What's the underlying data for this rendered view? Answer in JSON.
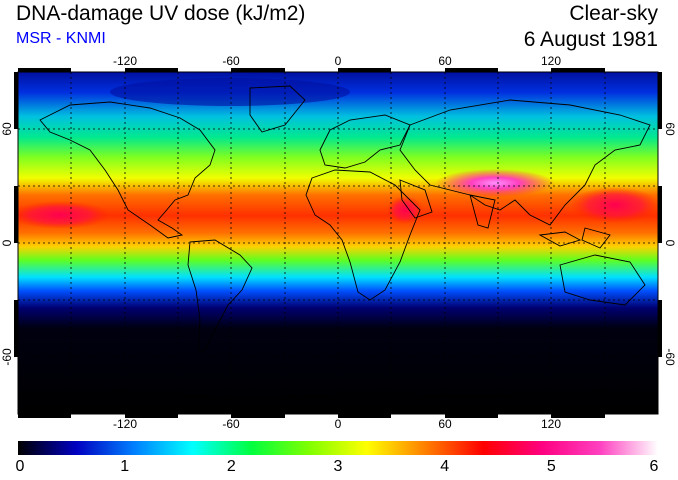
{
  "header": {
    "title": "DNA-damage UV dose (kJ/m2)",
    "subtitle": "MSR - KNMI",
    "mode": "Clear-sky",
    "date": "6 August 1981"
  },
  "map": {
    "lon_ticks": [
      "-120",
      "-60",
      "0",
      "60",
      "120"
    ],
    "lat_ticks_left": [
      "60",
      "0",
      "-60"
    ],
    "lat_ticks_right": [
      "60",
      "0",
      "-60"
    ],
    "grid": true,
    "projection": "equirectangular"
  },
  "colorbar": {
    "labels": [
      "0",
      "1",
      "2",
      "3",
      "4",
      "5",
      "6"
    ],
    "colors": [
      "#000000",
      "#0000c0",
      "#0080ff",
      "#00ffff",
      "#00ff40",
      "#80ff00",
      "#ffff00",
      "#ff8000",
      "#ff0000",
      "#ff0080",
      "#ff40c0",
      "#ffffff"
    ]
  }
}
